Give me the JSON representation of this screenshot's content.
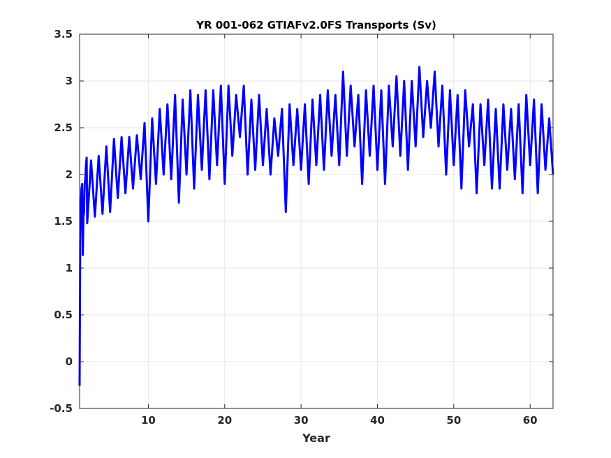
{
  "chart_data": {
    "type": "line",
    "title": "YR 001-062 GTIAFv2.0FS Transports (Sv)",
    "xlabel": "Year",
    "ylabel": "",
    "xlim": [
      1,
      63
    ],
    "ylim": [
      -0.5,
      3.5
    ],
    "xticks": [
      10,
      20,
      30,
      40,
      50,
      60
    ],
    "yticks": [
      -0.5,
      0,
      0.5,
      1,
      1.5,
      2,
      2.5,
      3,
      3.5
    ],
    "ytick_labels": [
      "-0.5",
      "0",
      "0.5",
      "1",
      "1.5",
      "2",
      "2.5",
      "3",
      "3.5"
    ],
    "grid": true,
    "legend": "none",
    "line_color": "#0000ff",
    "series": [
      {
        "x": [
          1.0,
          1.08,
          1.17,
          1.25,
          1.33,
          1.42,
          1.5,
          1.58,
          1.67,
          1.75,
          1.83,
          1.92,
          2.0,
          2.5,
          3.0,
          3.5,
          4.0,
          4.5,
          5.0,
          5.5,
          6.0,
          6.5,
          7.0,
          7.5,
          8.0,
          8.5,
          9.0,
          9.5,
          10.0,
          10.5,
          11.0,
          11.5,
          12.0,
          12.5,
          13.0,
          13.5,
          14.0,
          14.5,
          15.0,
          15.5,
          16.0,
          16.5,
          17.0,
          17.5,
          18.0,
          18.5,
          19.0,
          19.5,
          20.0,
          20.5,
          21.0,
          21.5,
          22.0,
          22.5,
          23.0,
          23.5,
          24.0,
          24.5,
          25.0,
          25.5,
          26.0,
          26.5,
          27.0,
          27.5,
          28.0,
          28.5,
          29.0,
          29.5,
          30.0,
          30.5,
          31.0,
          31.5,
          32.0,
          32.5,
          33.0,
          33.5,
          34.0,
          34.5,
          35.0,
          35.5,
          36.0,
          36.5,
          37.0,
          37.5,
          38.0,
          38.5,
          39.0,
          39.5,
          40.0,
          40.5,
          41.0,
          41.5,
          42.0,
          42.5,
          43.0,
          43.5,
          44.0,
          44.5,
          45.0,
          45.5,
          46.0,
          46.5,
          47.0,
          47.5,
          48.0,
          48.5,
          49.0,
          49.5,
          50.0,
          50.5,
          51.0,
          51.5,
          52.0,
          52.5,
          53.0,
          53.5,
          54.0,
          54.5,
          55.0,
          55.5,
          56.0,
          56.5,
          57.0,
          57.5,
          58.0,
          58.5,
          59.0,
          59.5,
          60.0,
          60.5,
          61.0,
          61.5,
          62.0,
          62.5,
          63.0
        ],
        "y": [
          -0.26,
          1.3,
          1.7,
          1.85,
          1.9,
          1.14,
          1.55,
          1.6,
          1.9,
          1.95,
          2.1,
          2.18,
          1.48,
          2.15,
          1.55,
          2.2,
          1.58,
          2.3,
          1.6,
          2.38,
          1.75,
          2.4,
          1.8,
          2.4,
          1.85,
          2.42,
          1.95,
          2.55,
          1.5,
          2.6,
          1.9,
          2.7,
          2.0,
          2.75,
          1.95,
          2.85,
          1.7,
          2.8,
          2.0,
          2.9,
          1.85,
          2.85,
          2.05,
          2.9,
          1.95,
          2.9,
          2.1,
          2.95,
          1.9,
          2.95,
          2.2,
          2.85,
          2.4,
          2.95,
          2.0,
          2.8,
          2.05,
          2.85,
          2.1,
          2.7,
          2.0,
          2.6,
          2.2,
          2.7,
          1.6,
          2.75,
          2.1,
          2.7,
          2.05,
          2.75,
          1.9,
          2.8,
          2.1,
          2.85,
          2.05,
          2.9,
          2.2,
          2.85,
          2.1,
          3.1,
          2.2,
          2.95,
          2.3,
          2.85,
          1.9,
          2.9,
          2.2,
          2.95,
          2.05,
          2.9,
          1.9,
          2.95,
          2.3,
          3.05,
          2.2,
          3.0,
          2.05,
          3.0,
          2.3,
          3.15,
          2.4,
          3.0,
          2.5,
          3.1,
          2.3,
          2.95,
          2.0,
          2.9,
          2.1,
          2.85,
          1.85,
          2.9,
          2.3,
          2.75,
          1.8,
          2.75,
          2.1,
          2.8,
          1.85,
          2.7,
          1.85,
          2.75,
          2.05,
          2.7,
          1.95,
          2.75,
          1.8,
          2.85,
          2.1,
          2.8,
          1.8,
          2.75,
          2.05,
          2.6,
          2.0
        ]
      }
    ]
  }
}
